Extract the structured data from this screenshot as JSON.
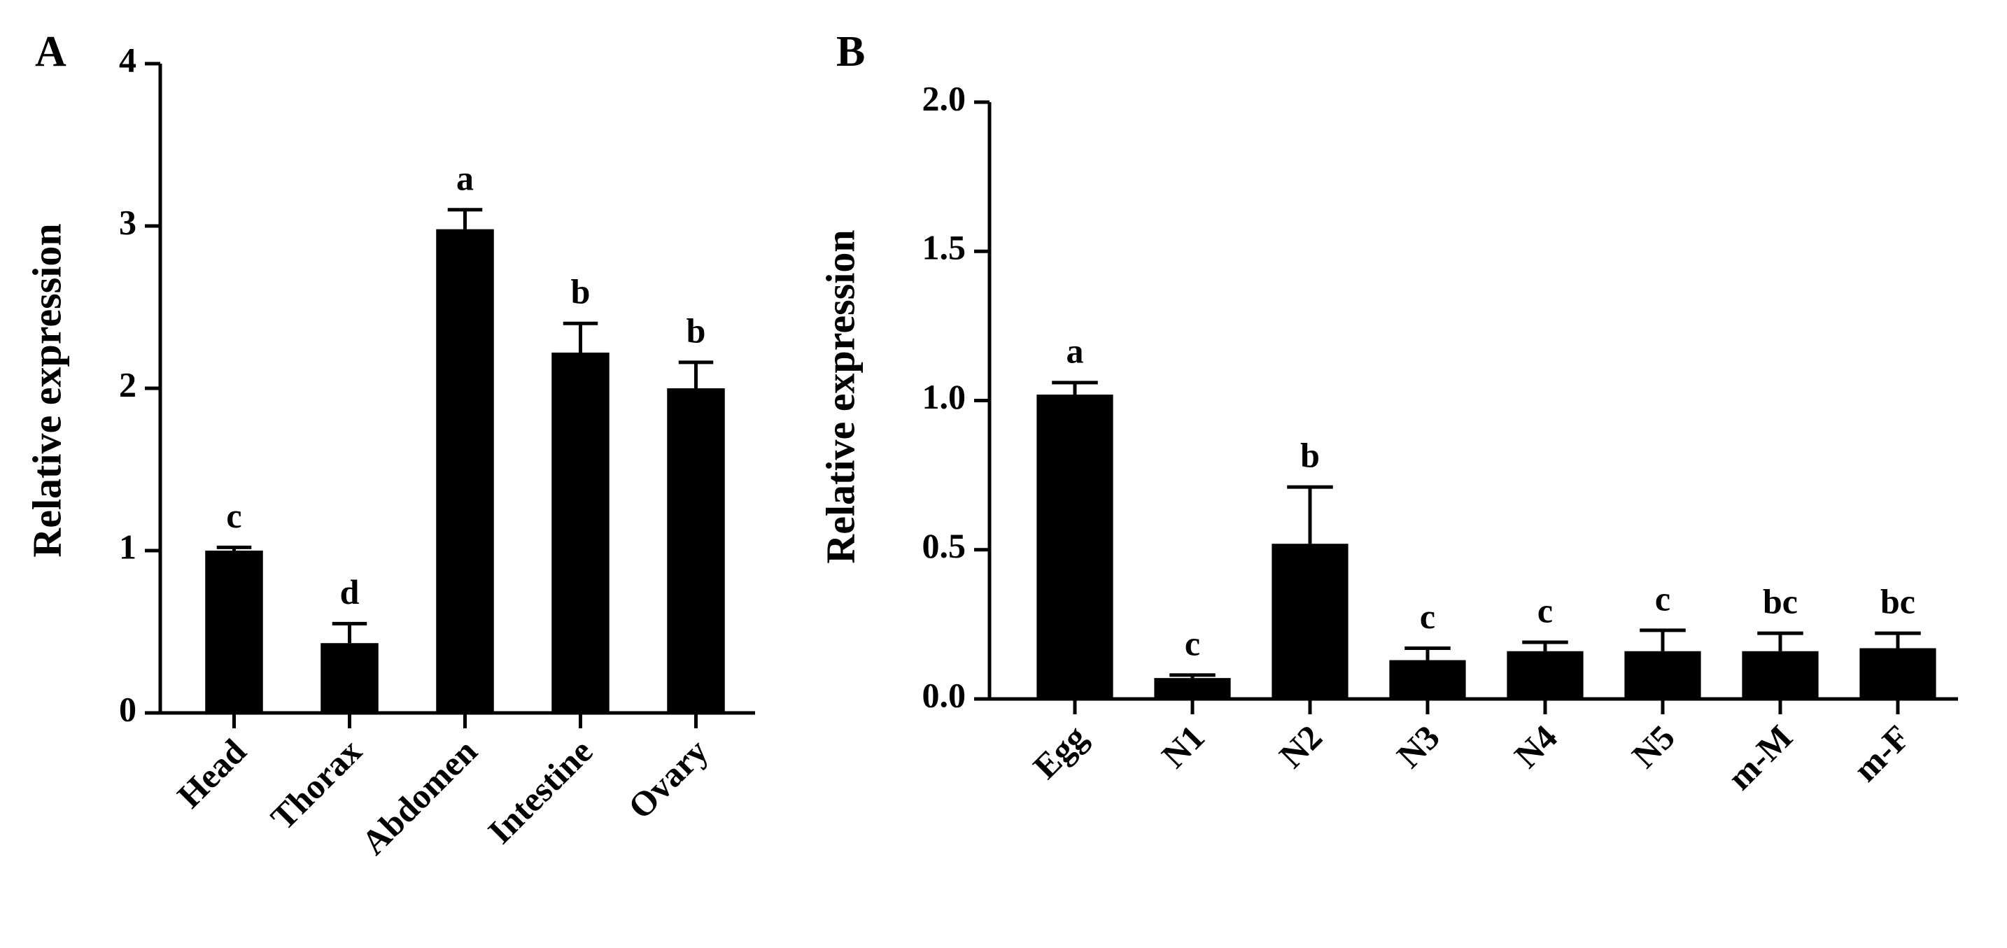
{
  "chart_data": [
    {
      "type": "bar",
      "panel": "A",
      "ylabel": "Relative expression",
      "categories": [
        "Head",
        "Thorax",
        "Abdomen",
        "Intestine",
        "Ovary"
      ],
      "values": [
        1.0,
        0.43,
        2.98,
        2.22,
        2.0
      ],
      "errors": [
        0.02,
        0.12,
        0.12,
        0.18,
        0.16
      ],
      "annotations": [
        "c",
        "d",
        "a",
        "b",
        "b"
      ],
      "color": "#000000",
      "ylim": [
        0,
        4
      ],
      "yticks": [
        0,
        1,
        2,
        3,
        4
      ]
    },
    {
      "type": "bar",
      "panel": "B",
      "ylabel": "Relative expression",
      "categories": [
        "Egg",
        "N1",
        "N2",
        "N3",
        "N4",
        "N5",
        "m-M",
        "m-F"
      ],
      "values": [
        1.02,
        0.07,
        0.52,
        0.13,
        0.16,
        0.16,
        0.16,
        0.17
      ],
      "errors": [
        0.04,
        0.01,
        0.19,
        0.04,
        0.03,
        0.07,
        0.06,
        0.05
      ],
      "annotations": [
        "a",
        "c",
        "b",
        "c",
        "c",
        "c",
        "bc",
        "bc"
      ],
      "color": "#000000",
      "ylim": [
        0,
        2
      ],
      "yticks": [
        {
          "value": 0,
          "label": "0.0"
        },
        0.5,
        {
          "value": 1,
          "label": "1.0"
        },
        1.5,
        {
          "value": 2,
          "label": "2.0"
        }
      ]
    }
  ]
}
